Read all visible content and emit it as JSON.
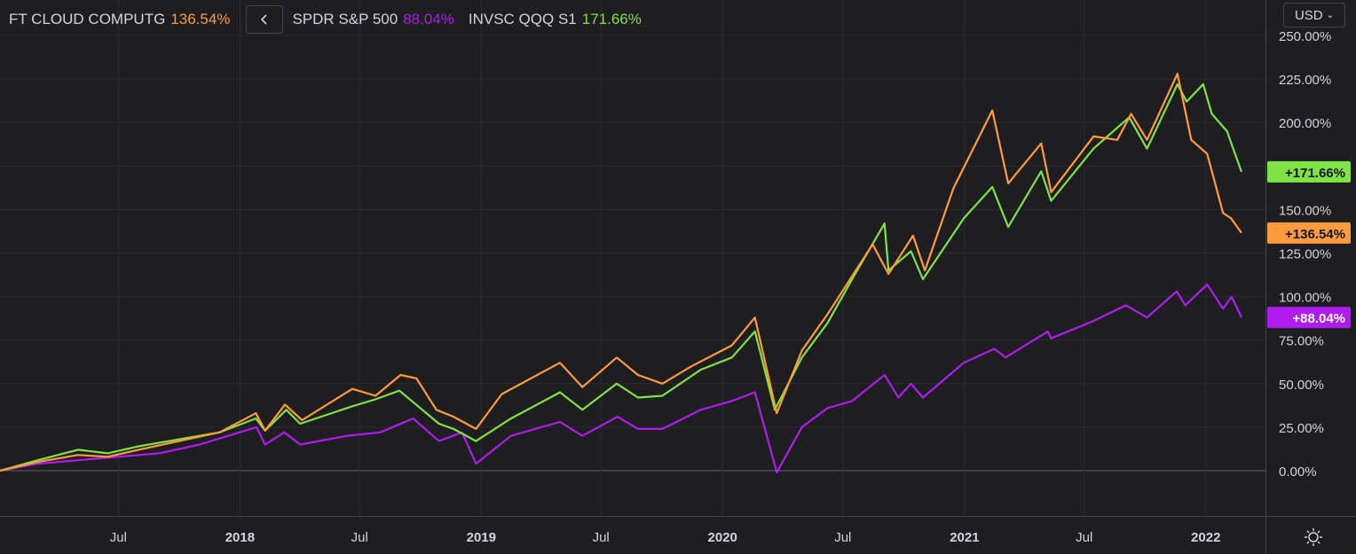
{
  "legend": [
    {
      "name": "FT CLOUD COMPUTG",
      "value": "136.54%",
      "color": "#ff9a3d"
    },
    {
      "name": "SPDR S&P 500",
      "value": "88.04%",
      "color": "#b01bf0"
    },
    {
      "name": "INVSC QQQ S1",
      "value": "171.66%",
      "color": "#7fe245"
    }
  ],
  "toolbar": {
    "currency": "USD",
    "collapse_icon": "chevron-left-icon",
    "settings_icon": "sun-gear-icon"
  },
  "colors": {
    "background": "#1e1e21",
    "grid": "#2a2b30",
    "text": "#d1d4dc"
  },
  "chart_data": {
    "type": "line",
    "title": "",
    "xlabel": "",
    "ylabel": "",
    "ylim": [
      -20,
      255
    ],
    "x_range": [
      "2017-01-03",
      "2022-02-28"
    ],
    "y_tick_values": [
      0,
      25,
      50,
      75,
      100,
      125,
      150,
      175,
      200,
      225,
      250
    ],
    "y_tick_labels": [
      "0.00%",
      "25.00%",
      "50.00%",
      "75.00%",
      "100.00%",
      "125.00%",
      "150.00%",
      "",
      "200.00%",
      "225.00%",
      "250.00%"
    ],
    "x_ticks": [
      {
        "date": "2017-07-01",
        "label": "Jul",
        "bold": false
      },
      {
        "date": "2018-01-01",
        "label": "2018",
        "bold": true
      },
      {
        "date": "2018-07-01",
        "label": "Jul",
        "bold": false
      },
      {
        "date": "2019-01-01",
        "label": "2019",
        "bold": true
      },
      {
        "date": "2019-07-01",
        "label": "Jul",
        "bold": false
      },
      {
        "date": "2020-01-01",
        "label": "2020",
        "bold": true
      },
      {
        "date": "2020-07-01",
        "label": "Jul",
        "bold": false
      },
      {
        "date": "2021-01-01",
        "label": "2021",
        "bold": true
      },
      {
        "date": "2021-07-01",
        "label": "Jul",
        "bold": false
      },
      {
        "date": "2022-01-01",
        "label": "2022",
        "bold": true
      }
    ],
    "grid": true,
    "series": [
      {
        "name": "FT CLOUD COMPUTG",
        "color": "#ff9a3d",
        "last_label": "+136.54%",
        "points": [
          [
            "2017-01-03",
            0
          ],
          [
            "2017-03-01",
            5
          ],
          [
            "2017-05-01",
            9
          ],
          [
            "2017-06-15",
            8
          ],
          [
            "2017-08-01",
            12
          ],
          [
            "2017-10-01",
            17
          ],
          [
            "2017-12-01",
            22
          ],
          [
            "2018-01-25",
            33
          ],
          [
            "2018-02-08",
            23
          ],
          [
            "2018-03-10",
            38
          ],
          [
            "2018-04-05",
            29
          ],
          [
            "2018-06-20",
            47
          ],
          [
            "2018-07-25",
            43
          ],
          [
            "2018-09-01",
            55
          ],
          [
            "2018-09-25",
            53
          ],
          [
            "2018-10-25",
            35
          ],
          [
            "2018-11-20",
            31
          ],
          [
            "2018-12-24",
            24
          ],
          [
            "2019-02-01",
            44
          ],
          [
            "2019-04-30",
            62
          ],
          [
            "2019-06-03",
            48
          ],
          [
            "2019-07-25",
            65
          ],
          [
            "2019-08-26",
            55
          ],
          [
            "2019-10-02",
            50
          ],
          [
            "2019-11-15",
            60
          ],
          [
            "2020-01-15",
            72
          ],
          [
            "2020-02-19",
            88
          ],
          [
            "2020-03-23",
            33
          ],
          [
            "2020-04-30",
            69
          ],
          [
            "2020-06-08",
            90
          ],
          [
            "2020-08-15",
            130
          ],
          [
            "2020-09-08",
            113
          ],
          [
            "2020-10-15",
            135
          ],
          [
            "2020-11-02",
            115
          ],
          [
            "2020-12-15",
            162
          ],
          [
            "2021-02-12",
            207
          ],
          [
            "2021-03-08",
            165
          ],
          [
            "2021-04-27",
            188
          ],
          [
            "2021-05-12",
            160
          ],
          [
            "2021-07-15",
            192
          ],
          [
            "2021-08-20",
            190
          ],
          [
            "2021-09-10",
            205
          ],
          [
            "2021-10-04",
            190
          ],
          [
            "2021-11-19",
            228
          ],
          [
            "2021-12-10",
            190
          ],
          [
            "2022-01-03",
            182
          ],
          [
            "2022-01-27",
            148
          ],
          [
            "2022-02-08",
            145
          ],
          [
            "2022-02-24",
            136.54
          ]
        ]
      },
      {
        "name": "SPDR S&P 500",
        "color": "#b01bf0",
        "last_label": "+88.04%",
        "points": [
          [
            "2017-01-03",
            0
          ],
          [
            "2017-03-01",
            4
          ],
          [
            "2017-05-01",
            6
          ],
          [
            "2017-07-01",
            8
          ],
          [
            "2017-09-01",
            10
          ],
          [
            "2017-11-01",
            15
          ],
          [
            "2018-01-26",
            25
          ],
          [
            "2018-02-08",
            15
          ],
          [
            "2018-03-09",
            22
          ],
          [
            "2018-04-02",
            15
          ],
          [
            "2018-06-12",
            20
          ],
          [
            "2018-08-01",
            22
          ],
          [
            "2018-09-20",
            30
          ],
          [
            "2018-10-29",
            17
          ],
          [
            "2018-12-03",
            22
          ],
          [
            "2018-12-24",
            4
          ],
          [
            "2019-02-15",
            20
          ],
          [
            "2019-04-30",
            28
          ],
          [
            "2019-06-03",
            20
          ],
          [
            "2019-07-26",
            31
          ],
          [
            "2019-08-26",
            24
          ],
          [
            "2019-10-02",
            24
          ],
          [
            "2019-11-29",
            35
          ],
          [
            "2020-01-15",
            40
          ],
          [
            "2020-02-19",
            45
          ],
          [
            "2020-03-23",
            -1
          ],
          [
            "2020-04-30",
            25
          ],
          [
            "2020-06-08",
            36
          ],
          [
            "2020-07-15",
            40
          ],
          [
            "2020-09-02",
            55
          ],
          [
            "2020-09-23",
            42
          ],
          [
            "2020-10-12",
            50
          ],
          [
            "2020-10-30",
            42
          ],
          [
            "2020-12-31",
            62
          ],
          [
            "2021-02-15",
            70
          ],
          [
            "2021-03-04",
            65
          ],
          [
            "2021-05-07",
            80
          ],
          [
            "2021-05-12",
            76
          ],
          [
            "2021-07-15",
            86
          ],
          [
            "2021-09-02",
            95
          ],
          [
            "2021-10-04",
            88
          ],
          [
            "2021-11-18",
            103
          ],
          [
            "2021-12-01",
            95
          ],
          [
            "2022-01-03",
            107
          ],
          [
            "2022-01-27",
            93
          ],
          [
            "2022-02-09",
            100
          ],
          [
            "2022-02-24",
            88.04
          ]
        ]
      },
      {
        "name": "INVSC QQQ S1",
        "color": "#7fe245",
        "last_label": "+171.66%",
        "points": [
          [
            "2017-01-03",
            0
          ],
          [
            "2017-03-01",
            6
          ],
          [
            "2017-05-01",
            12
          ],
          [
            "2017-06-15",
            10
          ],
          [
            "2017-08-01",
            14
          ],
          [
            "2017-10-01",
            18
          ],
          [
            "2017-12-01",
            22
          ],
          [
            "2018-01-25",
            30
          ],
          [
            "2018-02-08",
            23
          ],
          [
            "2018-03-12",
            35
          ],
          [
            "2018-04-02",
            27
          ],
          [
            "2018-06-20",
            37
          ],
          [
            "2018-07-25",
            41
          ],
          [
            "2018-08-30",
            46
          ],
          [
            "2018-10-29",
            27
          ],
          [
            "2018-11-20",
            24
          ],
          [
            "2018-12-24",
            17
          ],
          [
            "2019-02-15",
            30
          ],
          [
            "2019-04-30",
            45
          ],
          [
            "2019-06-03",
            35
          ],
          [
            "2019-07-25",
            50
          ],
          [
            "2019-08-26",
            42
          ],
          [
            "2019-10-02",
            43
          ],
          [
            "2019-11-29",
            58
          ],
          [
            "2020-01-15",
            65
          ],
          [
            "2020-02-19",
            80
          ],
          [
            "2020-03-20",
            35
          ],
          [
            "2020-04-30",
            65
          ],
          [
            "2020-06-08",
            85
          ],
          [
            "2020-07-15",
            110
          ],
          [
            "2020-09-02",
            142
          ],
          [
            "2020-09-08",
            115
          ],
          [
            "2020-10-12",
            126
          ],
          [
            "2020-10-30",
            110
          ],
          [
            "2020-12-31",
            145
          ],
          [
            "2021-02-12",
            163
          ],
          [
            "2021-03-08",
            140
          ],
          [
            "2021-04-27",
            172
          ],
          [
            "2021-05-12",
            155
          ],
          [
            "2021-07-15",
            185
          ],
          [
            "2021-09-07",
            203
          ],
          [
            "2021-10-04",
            185
          ],
          [
            "2021-11-19",
            222
          ],
          [
            "2021-12-03",
            212
          ],
          [
            "2021-12-28",
            222
          ],
          [
            "2022-01-10",
            205
          ],
          [
            "2022-02-02",
            195
          ],
          [
            "2022-02-24",
            171.66
          ]
        ]
      }
    ]
  }
}
